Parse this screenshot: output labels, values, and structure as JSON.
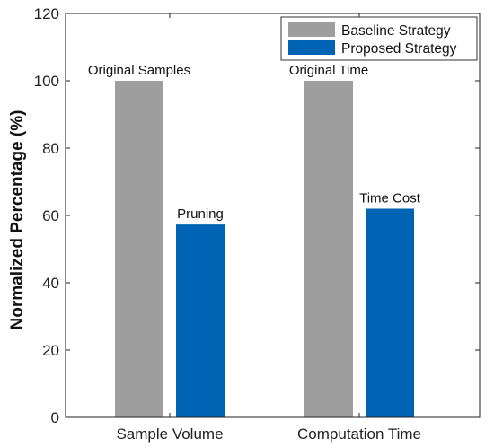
{
  "chart_data": {
    "type": "bar",
    "title": "",
    "xlabel": "",
    "ylabel": "Normalized Percentage (%)",
    "ylim": [
      0,
      120
    ],
    "yticks": [
      0,
      20,
      40,
      60,
      80,
      100,
      120
    ],
    "grid": false,
    "legend_position": "top-right",
    "categories": [
      "Sample Volume",
      "Computation Time"
    ],
    "series": [
      {
        "name": "Baseline Strategy",
        "color": "#9e9e9e",
        "values": [
          100,
          100
        ]
      },
      {
        "name": "Proposed Strategy",
        "color": "#0063b4",
        "values": [
          57.3,
          62
        ]
      }
    ],
    "annotations": [
      {
        "text": "Original Samples",
        "category": 0,
        "series": 0
      },
      {
        "text": "Pruning",
        "category": 0,
        "series": 1
      },
      {
        "text": "Original Time",
        "category": 1,
        "series": 0
      },
      {
        "text": "Time Cost",
        "category": 1,
        "series": 1
      }
    ]
  }
}
